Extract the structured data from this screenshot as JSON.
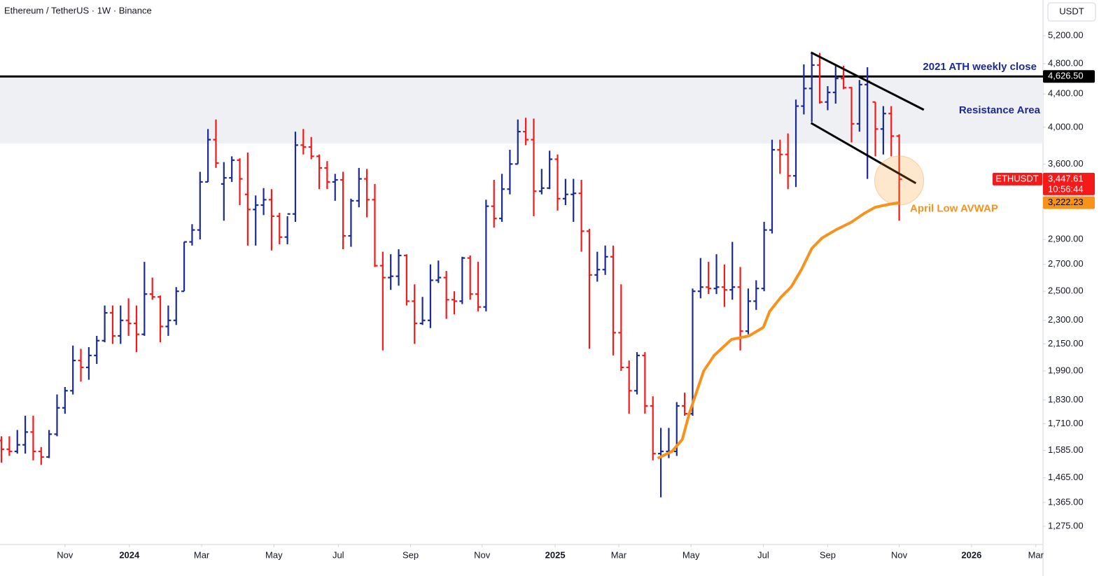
{
  "chart_data": {
    "type": "ohlc",
    "title": "Ethereum / TetherUS · 1W · Binance",
    "currency": "USDT",
    "log_scale": true,
    "up_color": "#1a2a96",
    "down_color": "#f51a1a",
    "ylim": [
      1210,
      5760
    ],
    "xlim": [
      -0.18,
      131.1
    ],
    "yticks": [
      {
        "value": 1275,
        "label": "1,275.00"
      },
      {
        "value": 1365,
        "label": "1,365.00"
      },
      {
        "value": 1465,
        "label": "1,465.00"
      },
      {
        "value": 1585,
        "label": "1,585.00"
      },
      {
        "value": 1710,
        "label": "1,710.00"
      },
      {
        "value": 1830,
        "label": "1,830.00"
      },
      {
        "value": 1990,
        "label": "1,990.00"
      },
      {
        "value": 2150,
        "label": "2,150.00"
      },
      {
        "value": 2300,
        "label": "2,300.00"
      },
      {
        "value": 2500,
        "label": "2,500.00"
      },
      {
        "value": 2700,
        "label": "2,700.00"
      },
      {
        "value": 2900,
        "label": "2,900.00"
      },
      {
        "value": 3600,
        "label": "3,600.00"
      },
      {
        "value": 4000,
        "label": "4,000.00"
      },
      {
        "value": 4400,
        "label": "4,400.00"
      },
      {
        "value": 4800,
        "label": "4,800.00"
      },
      {
        "value": 5200,
        "label": "5,200.00"
      }
    ],
    "xticks": [
      {
        "value": 8.0,
        "label": "Nov"
      },
      {
        "value": 16.1,
        "label": "2024"
      },
      {
        "value": 25.2,
        "label": "Mar"
      },
      {
        "value": 34.3,
        "label": "May"
      },
      {
        "value": 42.4,
        "label": "Jul"
      },
      {
        "value": 51.5,
        "label": "Sep"
      },
      {
        "value": 60.5,
        "label": "Nov"
      },
      {
        "value": 69.7,
        "label": "2025"
      },
      {
        "value": 77.7,
        "label": "Mar"
      },
      {
        "value": 86.8,
        "label": "May"
      },
      {
        "value": 95.9,
        "label": "Jul"
      },
      {
        "value": 104.0,
        "label": "Sep"
      },
      {
        "value": 113.0,
        "label": "Nov"
      },
      {
        "value": 122.1,
        "label": "2026"
      },
      {
        "value": 130.2,
        "label": "Mar"
      }
    ],
    "ohlc": [
      [
        1630,
        1650,
        1530,
        1590
      ],
      [
        1590,
        1650,
        1560,
        1580
      ],
      [
        1580,
        1680,
        1570,
        1610
      ],
      [
        1610,
        1750,
        1570,
        1670
      ],
      [
        1670,
        1750,
        1540,
        1580
      ],
      [
        1580,
        1600,
        1520,
        1555
      ],
      [
        1555,
        1680,
        1550,
        1660
      ],
      [
        1660,
        1860,
        1650,
        1790
      ],
      [
        1790,
        1900,
        1760,
        1880
      ],
      [
        1880,
        2140,
        1860,
        2050
      ],
      [
        2050,
        2120,
        1930,
        2010
      ],
      [
        2010,
        2130,
        1940,
        2080
      ],
      [
        2080,
        2200,
        2030,
        2170
      ],
      [
        2170,
        2400,
        2160,
        2350
      ],
      [
        2350,
        2400,
        2150,
        2200
      ],
      [
        2200,
        2400,
        2150,
        2300
      ],
      [
        2300,
        2450,
        2200,
        2280
      ],
      [
        2280,
        2400,
        2100,
        2210
      ],
      [
        2210,
        2720,
        2200,
        2480
      ],
      [
        2480,
        2600,
        2440,
        2460
      ],
      [
        2460,
        2470,
        2160,
        2260
      ],
      [
        2260,
        2400,
        2200,
        2300
      ],
      [
        2300,
        2530,
        2270,
        2500
      ],
      [
        2500,
        2880,
        2500,
        2880
      ],
      [
        2880,
        3030,
        2850,
        2980
      ],
      [
        2980,
        3520,
        2900,
        3420
      ],
      [
        3420,
        3980,
        3420,
        3860
      ],
      [
        3860,
        4090,
        3560,
        3610
      ],
      [
        3400,
        3620,
        3060,
        3460
      ],
      [
        3460,
        3680,
        3420,
        3640
      ],
      [
        3640,
        3660,
        3200,
        3450
      ],
      [
        3300,
        3720,
        2850,
        3160
      ],
      [
        3160,
        3290,
        2850,
        3200
      ],
      [
        3200,
        3360,
        3110,
        3250
      ],
      [
        3250,
        3350,
        2810,
        3100
      ],
      [
        3100,
        3130,
        2860,
        2920
      ],
      [
        2920,
        3100,
        2860,
        3120
      ],
      [
        3120,
        3950,
        3050,
        3800
      ],
      [
        3800,
        3980,
        3700,
        3780
      ],
      [
        3780,
        3890,
        3650,
        3680
      ],
      [
        3680,
        3700,
        3350,
        3560
      ],
      [
        3560,
        3630,
        3350,
        3420
      ],
      [
        3420,
        3500,
        3240,
        3440
      ],
      [
        3440,
        3520,
        2820,
        2930
      ],
      [
        2930,
        3260,
        2840,
        3240
      ],
      [
        3240,
        3560,
        3180,
        3450
      ],
      [
        3450,
        3550,
        3090,
        3250
      ],
      [
        3250,
        3400,
        2680,
        2690
      ],
      [
        2690,
        2800,
        2110,
        2600
      ],
      [
        2600,
        2780,
        2510,
        2610
      ],
      [
        2610,
        2820,
        2540,
        2770
      ],
      [
        2770,
        2780,
        2400,
        2430
      ],
      [
        2430,
        2550,
        2150,
        2280
      ],
      [
        2280,
        2460,
        2270,
        2300
      ],
      [
        2300,
        2700,
        2250,
        2580
      ],
      [
        2580,
        2730,
        2560,
        2600
      ],
      [
        2600,
        2650,
        2310,
        2440
      ],
      [
        2440,
        2500,
        2340,
        2430
      ],
      [
        2430,
        2760,
        2410,
        2750
      ],
      [
        2750,
        2770,
        2440,
        2480
      ],
      [
        2480,
        2720,
        2360,
        2390
      ],
      [
        2390,
        3250,
        2360,
        3190
      ],
      [
        3190,
        3440,
        3000,
        3080
      ],
      [
        3080,
        3500,
        3050,
        3350
      ],
      [
        3350,
        3750,
        3300,
        3600
      ],
      [
        3600,
        4090,
        3600,
        3950
      ],
      [
        3950,
        4110,
        3800,
        3860
      ],
      [
        3860,
        4100,
        3100,
        3330
      ],
      [
        3330,
        3550,
        3300,
        3360
      ],
      [
        3360,
        3740,
        3350,
        3650
      ],
      [
        3650,
        3700,
        3150,
        3260
      ],
      [
        3260,
        3450,
        3200,
        3300
      ],
      [
        3300,
        3450,
        3050,
        3310
      ],
      [
        3310,
        3440,
        2800,
        2970
      ],
      [
        2970,
        2990,
        2120,
        2620
      ],
      [
        2620,
        2800,
        2570,
        2660
      ],
      [
        2660,
        2850,
        2620,
        2760
      ],
      [
        2760,
        2850,
        2080,
        2220
      ],
      [
        2220,
        2550,
        1990,
        2010
      ],
      [
        2010,
        2050,
        1760,
        1880
      ],
      [
        1880,
        2100,
        1860,
        2080
      ],
      [
        2080,
        2100,
        1760,
        1800
      ],
      [
        1800,
        1850,
        1540,
        1570
      ],
      [
        1570,
        1690,
        1385,
        1580
      ],
      [
        1580,
        1690,
        1550,
        1580
      ],
      [
        1580,
        1820,
        1560,
        1800
      ],
      [
        1800,
        1870,
        1750,
        1760
      ],
      [
        1760,
        2520,
        1750,
        2500
      ],
      [
        2500,
        2750,
        2450,
        2530
      ],
      [
        2530,
        2720,
        2480,
        2520
      ],
      [
        2520,
        2780,
        2480,
        2530
      ],
      [
        2530,
        2700,
        2390,
        2510
      ],
      [
        2510,
        2880,
        2440,
        2530
      ],
      [
        2530,
        2680,
        2110,
        2230
      ],
      [
        2230,
        2520,
        2210,
        2430
      ],
      [
        2430,
        2580,
        2370,
        2520
      ],
      [
        2520,
        3050,
        2500,
        2980
      ],
      [
        2980,
        3860,
        2950,
        3750
      ],
      [
        3750,
        3860,
        3500,
        3700
      ],
      [
        3700,
        3930,
        3350,
        3480
      ],
      [
        3480,
        4330,
        3370,
        4250
      ],
      [
        4250,
        4790,
        4150,
        4470
      ],
      [
        4470,
        4960,
        4060,
        4780
      ],
      [
        4780,
        4950,
        4280,
        4300
      ],
      [
        4300,
        4500,
        4200,
        4420
      ],
      [
        4420,
        4770,
        4280,
        4600
      ],
      [
        4600,
        4770,
        4460,
        4480
      ],
      [
        4480,
        4490,
        3830,
        4040
      ],
      [
        4040,
        4580,
        3950,
        4520
      ],
      [
        4520,
        4750,
        3450,
        4560
      ],
      [
        4300,
        4300,
        3680,
        3980
      ],
      [
        3980,
        4250,
        3700,
        4160
      ],
      [
        4160,
        4250,
        3680,
        3900
      ],
      [
        3900,
        3920,
        3060,
        3447.61
      ]
    ],
    "resistance_band": [
      3818,
      4626.5
    ],
    "ath_line": 4626.5,
    "ath_label": "4,626.50",
    "ath_annotation": "2021 ATH weekly close",
    "band_annotation": "Resistance Area",
    "channel_upper": {
      "x": [
        101.9,
        116.1
      ],
      "y": [
        4956,
        4205
      ]
    },
    "channel_lower": {
      "x": [
        101.9,
        115.1
      ],
      "y": [
        4049,
        3407
      ]
    },
    "avwap": {
      "name": "April Low AVWAP",
      "color": "#f7931a",
      "last_label": "3,222.23",
      "x": [
        82.6,
        84.4,
        85.7,
        86.6,
        87.5,
        88.4,
        89.7,
        91.9,
        94.1,
        95.9,
        96.7,
        98.1,
        99.4,
        100.7,
        102.0,
        103.3,
        105.1,
        106.9,
        108.6,
        110.0,
        111.7,
        113.0
      ],
      "y": [
        1549,
        1580,
        1635,
        1764,
        1874,
        1990,
        2080,
        2178,
        2200,
        2254,
        2360,
        2457,
        2531,
        2661,
        2827,
        2913,
        2984,
        3044,
        3125,
        3181,
        3207,
        3222.23
      ]
    },
    "symbol": "ETHUSDT",
    "last_price": 3447.61,
    "last_price_label": "3,447.61",
    "countdown": "10:56:44"
  }
}
